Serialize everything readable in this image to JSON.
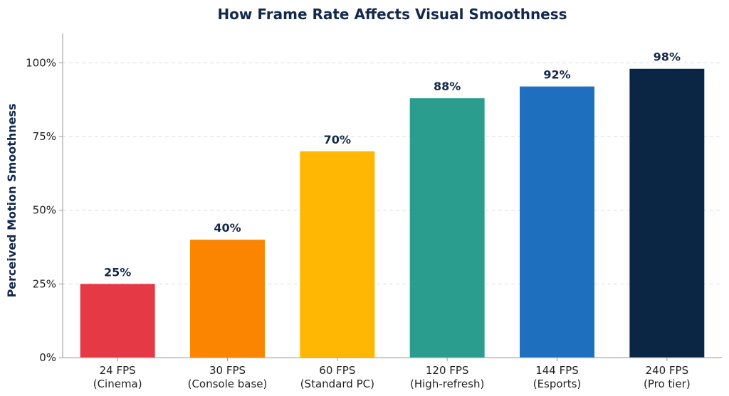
{
  "chart_data": {
    "type": "bar",
    "title": "How Frame Rate Affects Visual Smoothness",
    "xlabel": "",
    "ylabel": "Perceived Motion Smoothness",
    "ylim": [
      0,
      110
    ],
    "yticks": [
      0,
      25,
      50,
      75,
      100
    ],
    "ytick_labels": [
      "0%",
      "25%",
      "50%",
      "75%",
      "100%"
    ],
    "grid": true,
    "categories": [
      [
        "24 FPS",
        "(Cinema)"
      ],
      [
        "30 FPS",
        "(Console base)"
      ],
      [
        "60 FPS",
        "(Standard PC)"
      ],
      [
        "120 FPS",
        "(High-refresh)"
      ],
      [
        "144 FPS",
        "(Esports)"
      ],
      [
        "240 FPS",
        "(Pro tier)"
      ]
    ],
    "values": [
      25,
      40,
      70,
      88,
      92,
      98
    ],
    "value_labels": [
      "25%",
      "40%",
      "70%",
      "88%",
      "92%",
      "98%"
    ],
    "colors": [
      "#e63946",
      "#fb8500",
      "#ffb703",
      "#2a9d8f",
      "#1f6fbf",
      "#0b2545"
    ]
  }
}
